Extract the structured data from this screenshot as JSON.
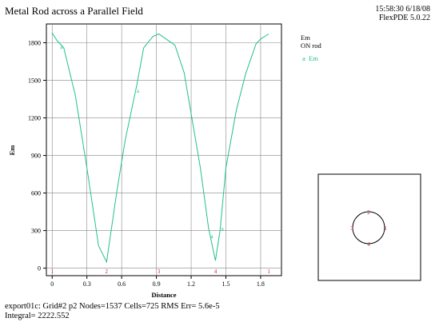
{
  "header": {
    "title": "Metal Rod across a Parallel Field",
    "time": "15:58:30 6/18/08",
    "version": "FlexPDE 5.0.22"
  },
  "legend": {
    "title": "Em",
    "subtitle": "ON rod",
    "entry_marker": "a",
    "entry_label": "Em"
  },
  "footer": {
    "line1": "export01c:  Grid#2  p2  Nodes=1537 Cells=725 RMS Err= 5.6e-5",
    "line2": "Integral=   2222.552"
  },
  "colors": {
    "series": "#22c08a",
    "markers": "#cc2222",
    "grid": "#888888"
  },
  "chart_data": {
    "type": "line",
    "title": "Metal Rod across a Parallel Field",
    "xlabel": "Distance",
    "ylabel": "Em",
    "xlim": [
      -0.05,
      1.98
    ],
    "ylim": [
      -60,
      1950
    ],
    "xticks": [
      0,
      0.3,
      0.6,
      0.9,
      1.2,
      1.5,
      1.8
    ],
    "xtick_labels": [
      "0",
      "0.3",
      "0.6",
      "0.9",
      "1.2",
      "1.5",
      "1.8"
    ],
    "yticks": [
      0,
      300,
      600,
      900,
      1200,
      1500,
      1800
    ],
    "ytick_labels": [
      "0",
      "300",
      "600",
      "900",
      "1200",
      "1500",
      "1800"
    ],
    "grid": true,
    "series": [
      {
        "name": "Em",
        "x": [
          0,
          0.04,
          0.1,
          0.2,
          0.3,
          0.4,
          0.47,
          0.56,
          0.63,
          0.73,
          0.79,
          0.87,
          0.92,
          1.06,
          1.14,
          1.28,
          1.35,
          1.41,
          1.45,
          1.5,
          1.59,
          1.67,
          1.76,
          1.8,
          1.87
        ],
        "y": [
          1880,
          1820,
          1760,
          1380,
          800,
          180,
          50,
          620,
          1020,
          1460,
          1760,
          1850,
          1870,
          1780,
          1560,
          800,
          320,
          60,
          300,
          800,
          1260,
          1550,
          1790,
          1830,
          1870
        ]
      }
    ],
    "series_labels": [
      {
        "text": "a",
        "x": 0.08,
        "y": 1770
      },
      {
        "text": "a",
        "x": 0.74,
        "y": 1420
      },
      {
        "text": "a",
        "x": 1.38,
        "y": 260
      },
      {
        "text": "a",
        "x": 1.47,
        "y": 320
      }
    ],
    "boundary_markers": [
      {
        "text": "1",
        "x": 0.0
      },
      {
        "text": "2",
        "x": 0.47
      },
      {
        "text": "3",
        "x": 0.92
      },
      {
        "text": "4",
        "x": 1.41
      },
      {
        "text": "1",
        "x": 1.87
      }
    ]
  }
}
